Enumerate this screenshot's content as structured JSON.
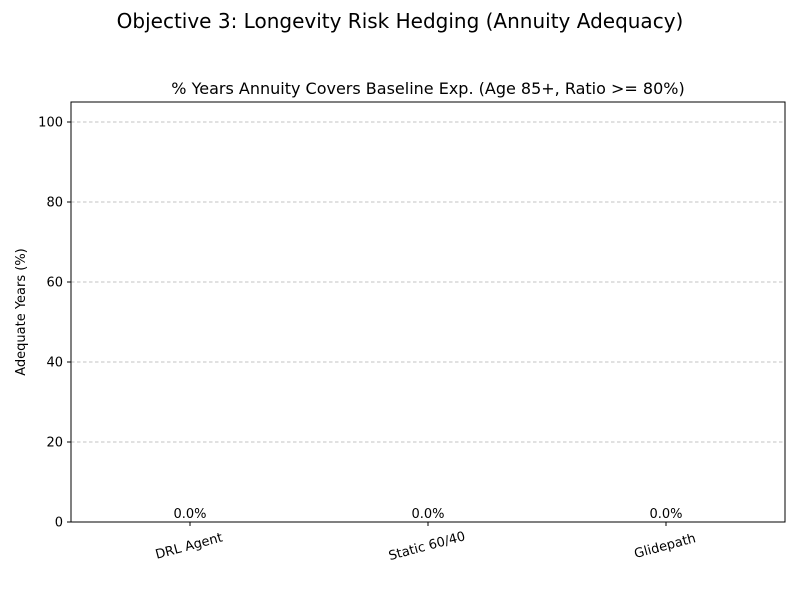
{
  "figure": {
    "suptitle": "Objective 3: Longevity Risk Hedging (Annuity Adequacy)"
  },
  "chart_data": {
    "type": "bar",
    "title": "% Years Annuity Covers Baseline Exp. (Age 85+, Ratio >= 80%)",
    "xlabel": "",
    "ylabel": "Adequate Years (%)",
    "categories": [
      "DRL Agent",
      "Static 60/40",
      "Glidepath"
    ],
    "values": [
      0.0,
      0.0,
      0.0
    ],
    "data_labels": [
      "0.0%",
      "0.0%",
      "0.0%"
    ],
    "ylim": [
      0,
      105
    ],
    "yticks": [
      0,
      20,
      40,
      60,
      80,
      100
    ],
    "ytick_labels": [
      "0",
      "20",
      "40",
      "60",
      "80",
      "100"
    ],
    "grid": "y-dashed",
    "xtick_rotation_deg": 15
  }
}
